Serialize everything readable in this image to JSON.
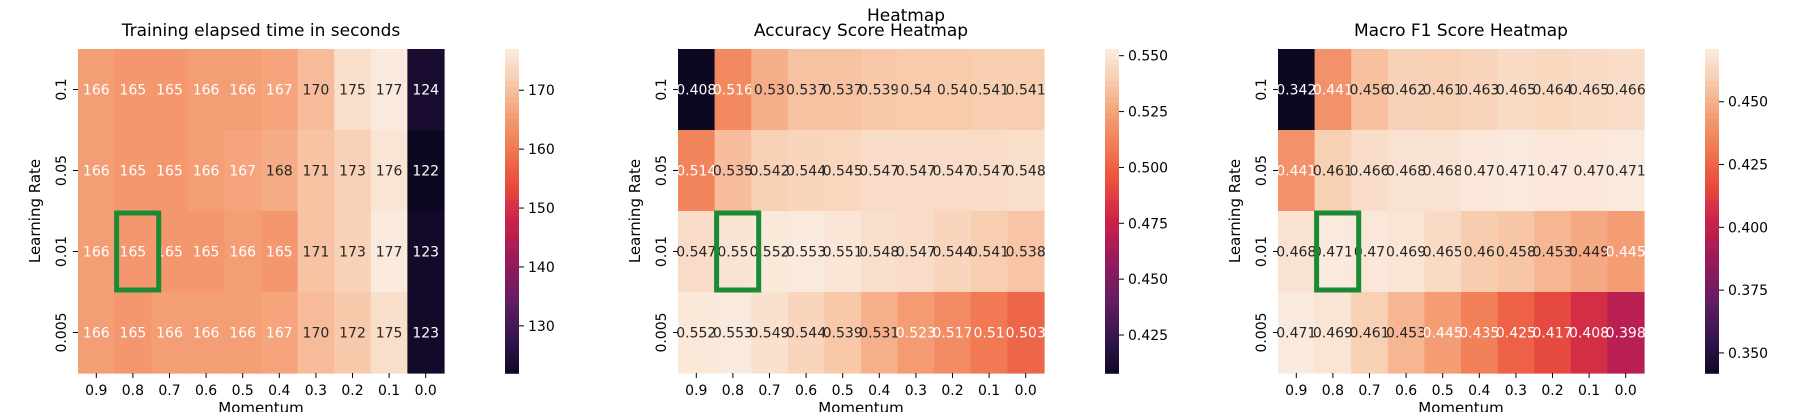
{
  "suptitle": "Heatmap",
  "chart_data": [
    {
      "type": "heatmap",
      "title": "Training elapsed time in seconds",
      "xlabel": "Momentum",
      "ylabel": "Learning Rate",
      "x_categories": [
        "0.9",
        "0.8",
        "0.7",
        "0.6",
        "0.5",
        "0.4",
        "0.3",
        "0.2",
        "0.1",
        "0.0"
      ],
      "y_categories": [
        "0.1",
        "0.05",
        "0.01",
        "0.005"
      ],
      "values": [
        [
          166,
          165,
          165,
          166,
          166,
          167,
          170,
          175,
          177,
          124
        ],
        [
          166,
          165,
          165,
          166,
          167,
          168,
          171,
          173,
          176,
          122
        ],
        [
          166,
          165,
          165,
          165,
          166,
          165,
          171,
          173,
          177,
          123
        ],
        [
          166,
          165,
          166,
          166,
          166,
          167,
          170,
          172,
          175,
          123
        ]
      ],
      "value_labels": [
        [
          "166",
          "165",
          "165",
          "166",
          "166",
          "167",
          "170",
          "175",
          "177",
          "124"
        ],
        [
          "166",
          "165",
          "165",
          "166",
          "167",
          "168",
          "171",
          "173",
          "176",
          "122"
        ],
        [
          "166",
          "165",
          "165",
          "165",
          "166",
          "165",
          "171",
          "173",
          "177",
          "123"
        ],
        [
          "166",
          "165",
          "166",
          "166",
          "166",
          "167",
          "170",
          "172",
          "175",
          "123"
        ]
      ],
      "colorbar": {
        "range": [
          122,
          177
        ],
        "ticks": [
          "130",
          "140",
          "150",
          "160",
          "170"
        ]
      },
      "highlight": {
        "row": 2,
        "col": 1,
        "color": "#1b8a35"
      }
    },
    {
      "type": "heatmap",
      "title": "Accuracy Score Heatmap",
      "xlabel": "Momentum",
      "ylabel": "Learning Rate",
      "x_categories": [
        "0.9",
        "0.8",
        "0.7",
        "0.6",
        "0.5",
        "0.4",
        "0.3",
        "0.2",
        "0.1",
        "0.0"
      ],
      "y_categories": [
        "0.1",
        "0.05",
        "0.01",
        "0.005"
      ],
      "values": [
        [
          0.408,
          0.516,
          0.53,
          0.537,
          0.537,
          0.539,
          0.54,
          0.54,
          0.541,
          0.541
        ],
        [
          0.514,
          0.535,
          0.542,
          0.544,
          0.545,
          0.547,
          0.547,
          0.547,
          0.547,
          0.548
        ],
        [
          0.547,
          0.55,
          0.552,
          0.553,
          0.551,
          0.548,
          0.547,
          0.544,
          0.541,
          0.538
        ],
        [
          0.552,
          0.553,
          0.549,
          0.544,
          0.539,
          0.531,
          0.523,
          0.517,
          0.51,
          0.503
        ]
      ],
      "value_labels": [
        [
          "0.408",
          "0.516",
          "0.53",
          "0.537",
          "0.537",
          "0.539",
          "0.54",
          "0.54",
          "0.541",
          "0.541"
        ],
        [
          "0.514",
          "0.535",
          "0.542",
          "0.544",
          "0.545",
          "0.547",
          "0.547",
          "0.547",
          "0.547",
          "0.548"
        ],
        [
          "0.547",
          "0.55",
          "0.552",
          "0.553",
          "0.551",
          "0.548",
          "0.547",
          "0.544",
          "0.541",
          "0.538"
        ],
        [
          "0.552",
          "0.553",
          "0.549",
          "0.544",
          "0.539",
          "0.531",
          "0.523",
          "0.517",
          "0.51",
          "0.503"
        ]
      ],
      "colorbar": {
        "range": [
          0.408,
          0.553
        ],
        "ticks": [
          "0.425",
          "0.450",
          "0.475",
          "0.500",
          "0.525",
          "0.550"
        ]
      },
      "highlight": {
        "row": 2,
        "col": 1,
        "color": "#1b8a35"
      }
    },
    {
      "type": "heatmap",
      "title": "Macro F1 Score Heatmap",
      "xlabel": "Momentum",
      "ylabel": "Learning Rate",
      "x_categories": [
        "0.9",
        "0.8",
        "0.7",
        "0.6",
        "0.5",
        "0.4",
        "0.3",
        "0.2",
        "0.1",
        "0.0"
      ],
      "y_categories": [
        "0.1",
        "0.05",
        "0.01",
        "0.005"
      ],
      "values": [
        [
          0.342,
          0.441,
          0.456,
          0.462,
          0.461,
          0.463,
          0.465,
          0.464,
          0.465,
          0.466
        ],
        [
          0.441,
          0.461,
          0.466,
          0.468,
          0.468,
          0.47,
          0.471,
          0.47,
          0.47,
          0.471
        ],
        [
          0.468,
          0.471,
          0.47,
          0.469,
          0.465,
          0.46,
          0.458,
          0.453,
          0.449,
          0.445
        ],
        [
          0.471,
          0.469,
          0.461,
          0.453,
          0.445,
          0.435,
          0.425,
          0.417,
          0.408,
          0.398
        ]
      ],
      "value_labels": [
        [
          "0.342",
          "0.441",
          "0.456",
          "0.462",
          "0.461",
          "0.463",
          "0.465",
          "0.464",
          "0.465",
          "0.466"
        ],
        [
          "0.441",
          "0.461",
          "0.466",
          "0.468",
          "0.468",
          "0.47",
          "0.471",
          "0.47",
          "0.47",
          "0.471"
        ],
        [
          "0.468",
          "0.471",
          "0.47",
          "0.469",
          "0.465",
          "0.46",
          "0.458",
          "0.453",
          "0.449",
          "0.445"
        ],
        [
          "0.471",
          "0.469",
          "0.461",
          "0.453",
          "0.445",
          "0.435",
          "0.425",
          "0.417",
          "0.408",
          "0.398"
        ]
      ],
      "colorbar": {
        "range": [
          0.342,
          0.471
        ],
        "ticks": [
          "0.350",
          "0.375",
          "0.400",
          "0.425",
          "0.450"
        ]
      },
      "highlight": {
        "row": 2,
        "col": 1,
        "color": "#1b8a35"
      }
    }
  ]
}
